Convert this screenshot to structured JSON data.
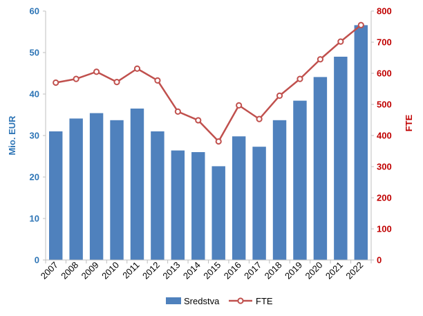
{
  "chart_data": {
    "type": "bar",
    "categories": [
      "2007",
      "2008",
      "2009",
      "2010",
      "2011",
      "2012",
      "2013",
      "2014",
      "2015",
      "2016",
      "2017",
      "2018",
      "2019",
      "2020",
      "2021",
      "2022"
    ],
    "series": [
      {
        "name": "Sredstva",
        "type": "bar",
        "axis": "left",
        "color": "#4F81BD",
        "values": [
          31.0,
          34.1,
          35.4,
          33.7,
          36.5,
          31.0,
          26.4,
          26.0,
          22.6,
          29.8,
          27.3,
          33.7,
          38.4,
          44.1,
          49.0,
          56.6
        ]
      },
      {
        "name": "FTE",
        "type": "line",
        "axis": "right",
        "color": "#C0504D",
        "marker": "circle",
        "values": [
          570,
          582,
          605,
          572,
          615,
          577,
          477,
          449,
          381,
          497,
          453,
          528,
          582,
          645,
          702,
          755
        ]
      }
    ],
    "ylabel_left": "Mio. EUR",
    "ylabel_right": "FTE",
    "ylim_left": [
      0,
      60
    ],
    "yticks_left": [
      "0",
      "10",
      "20",
      "30",
      "40",
      "50",
      "60"
    ],
    "ylim_right": [
      0,
      800
    ],
    "yticks_right": [
      "0",
      "100",
      "200",
      "300",
      "400",
      "500",
      "600",
      "700",
      "800"
    ],
    "grid": false,
    "legend_position": "bottom",
    "left_axis_color": "#2E75B6",
    "right_axis_color": "#C00000"
  }
}
